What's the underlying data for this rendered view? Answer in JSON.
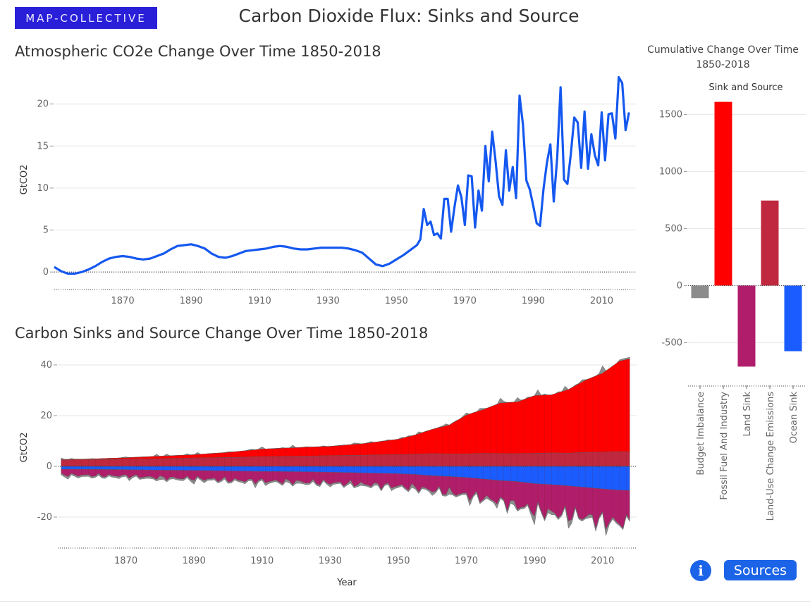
{
  "header": {
    "logo_text": "MAP-COLLECTIVE",
    "title": "Carbon Dioxide Flux: Sinks and Source"
  },
  "buttons": {
    "info_label": "i",
    "sources_label": "Sources"
  },
  "colors": {
    "line": "#1558f0",
    "budget_imbalance": "#8c8c8c",
    "fossil_fuel": "#ff0000",
    "land_sink": "#b01e6b",
    "land_use": "#c0283f",
    "ocean_sink": "#1a5cff"
  },
  "chart_data": [
    {
      "type": "line",
      "title": "Atmospheric CO2e Change Over Time 1850-2018",
      "xlabel": "",
      "ylabel": "GtCO2",
      "xlim": [
        1850,
        2020
      ],
      "ylim": [
        -2,
        24
      ],
      "xticks": [
        1870,
        1890,
        1910,
        1930,
        1950,
        1970,
        1990,
        2010
      ],
      "yticks": [
        0,
        5,
        10,
        15,
        20
      ],
      "grid": true,
      "x": [
        1850,
        1852,
        1854,
        1856,
        1858,
        1860,
        1862,
        1864,
        1866,
        1868,
        1870,
        1872,
        1874,
        1876,
        1878,
        1880,
        1882,
        1884,
        1886,
        1888,
        1890,
        1892,
        1894,
        1896,
        1898,
        1900,
        1902,
        1904,
        1906,
        1908,
        1910,
        1912,
        1914,
        1916,
        1918,
        1920,
        1922,
        1924,
        1926,
        1928,
        1930,
        1932,
        1934,
        1936,
        1938,
        1940,
        1942,
        1944,
        1946,
        1948,
        1950,
        1952,
        1954,
        1956,
        1957,
        1958,
        1959,
        1960,
        1961,
        1962,
        1963,
        1964,
        1965,
        1966,
        1967,
        1968,
        1969,
        1970,
        1971,
        1972,
        1973,
        1974,
        1975,
        1976,
        1977,
        1978,
        1979,
        1980,
        1981,
        1982,
        1983,
        1984,
        1985,
        1986,
        1987,
        1988,
        1989,
        1990,
        1991,
        1992,
        1993,
        1994,
        1995,
        1996,
        1997,
        1998,
        1999,
        2000,
        2001,
        2002,
        2003,
        2004,
        2005,
        2006,
        2007,
        2008,
        2009,
        2010,
        2011,
        2012,
        2013,
        2014,
        2015,
        2016,
        2017,
        2018
      ],
      "values": [
        0.6,
        0.1,
        -0.2,
        -0.2,
        0,
        0.3,
        0.7,
        1.2,
        1.6,
        1.8,
        1.9,
        1.8,
        1.6,
        1.5,
        1.6,
        1.9,
        2.2,
        2.7,
        3.1,
        3.2,
        3.3,
        3.1,
        2.8,
        2.2,
        1.8,
        1.7,
        1.9,
        2.2,
        2.5,
        2.6,
        2.7,
        2.8,
        3.0,
        3.1,
        3.0,
        2.8,
        2.7,
        2.7,
        2.8,
        2.9,
        2.9,
        2.9,
        2.9,
        2.8,
        2.6,
        2.3,
        1.6,
        0.9,
        0.7,
        1.0,
        1.5,
        2.0,
        2.6,
        3.2,
        3.9,
        7.5,
        5.6,
        6.0,
        4.4,
        4.6,
        4.0,
        8.7,
        8.7,
        4.8,
        7.8,
        10.3,
        8.9,
        5.6,
        11.5,
        11.4,
        5.3,
        9.7,
        7.3,
        15.0,
        10.8,
        16.7,
        13.2,
        9.0,
        8.0,
        14.5,
        9.7,
        12.5,
        8.8,
        21.0,
        17.5,
        10.9,
        9.8,
        7.9,
        5.8,
        5.5,
        9.9,
        13.0,
        15.2,
        8.4,
        13.6,
        22.0,
        11.0,
        10.5,
        14.1,
        18.4,
        17.8,
        12.4,
        19.1,
        12.3,
        16.4,
        13.9,
        12.7,
        19.0,
        13.3,
        18.8,
        18.9,
        15.9,
        23.2,
        22.5,
        16.9,
        19.0
      ]
    },
    {
      "type": "area",
      "title": "Carbon Sinks and Source Change Over Time 1850-2018",
      "xlabel": "Year",
      "ylabel": "GtCO2",
      "xlim": [
        1850,
        2020
      ],
      "ylim": [
        -30,
        45
      ],
      "xticks": [
        1870,
        1890,
        1910,
        1930,
        1950,
        1970,
        1990,
        2010
      ],
      "yticks": [
        -20,
        0,
        20,
        40
      ],
      "grid": true,
      "x": [
        1850,
        1860,
        1870,
        1880,
        1890,
        1900,
        1910,
        1920,
        1930,
        1940,
        1950,
        1955,
        1960,
        1965,
        1970,
        1975,
        1980,
        1985,
        1990,
        1995,
        2000,
        2005,
        2010,
        2015,
        2018
      ],
      "series": [
        {
          "name": "Land-Use Change Emissions",
          "values": [
            2.5,
            2.6,
            2.8,
            3.0,
            3.3,
            3.5,
            3.8,
            4.0,
            4.2,
            4.4,
            4.6,
            4.8,
            5.0,
            4.9,
            4.9,
            5.1,
            5.0,
            5.0,
            5.1,
            5.3,
            5.2,
            5.5,
            5.6,
            5.8,
            5.7
          ]
        },
        {
          "name": "Fossil Fuel And Industry",
          "values": [
            0.2,
            0.3,
            0.6,
            1.0,
            1.3,
            2.0,
            3.0,
            3.4,
            3.7,
            4.6,
            6.1,
            7.6,
            9.6,
            11.4,
            15.3,
            17.3,
            20.0,
            20.4,
            22.8,
            22.9,
            25.1,
            28.5,
            31.1,
            35.7,
            36.7
          ]
        },
        {
          "name": "Ocean Sink",
          "values": [
            -1.1,
            -1.2,
            -1.3,
            -1.5,
            -1.6,
            -1.8,
            -2.0,
            -2.1,
            -2.3,
            -2.6,
            -2.9,
            -3.2,
            -3.7,
            -4.0,
            -4.4,
            -5.0,
            -5.6,
            -6.0,
            -6.8,
            -7.2,
            -7.7,
            -8.3,
            -8.9,
            -9.4,
            -9.5
          ]
        },
        {
          "name": "Land Sink",
          "values": [
            -2.2,
            -2.4,
            -2.5,
            -3.0,
            -3.2,
            -3.6,
            -3.8,
            -4.0,
            -4.2,
            -4.5,
            -5.0,
            -5.2,
            -5.7,
            -6.2,
            -7.0,
            -7.5,
            -8.2,
            -9.5,
            -10.5,
            -11.3,
            -11.3,
            -11.6,
            -12.5,
            -12.8,
            -12.6
          ]
        },
        {
          "name": "Budget Imbalance",
          "values": [
            -0.6,
            0.2,
            -0.4,
            0.8,
            -0.7,
            0.3,
            -0.8,
            0.9,
            -0.5,
            1.0,
            -0.9,
            1.1,
            -1.3,
            1.5,
            -1.6,
            1.4,
            -2.0,
            2.3,
            -2.5,
            2.4,
            -2.2,
            2.7,
            -2.4,
            2.1,
            -1.9
          ]
        }
      ]
    },
    {
      "type": "bar",
      "title": "Cumulative Change Over Time 1850-2018",
      "subtitle": "Sink and Source",
      "xlabel": "",
      "ylabel": "",
      "ylim": [
        -800,
        1700
      ],
      "yticks": [
        -500,
        0,
        500,
        1000,
        1500
      ],
      "grid": true,
      "categories": [
        "Budget Imbalance",
        "Fossil Fuel And Industry",
        "Land Sink",
        "Land-Use Change Emissions",
        "Ocean Sink"
      ],
      "values": [
        -110,
        1610,
        -710,
        745,
        -575
      ]
    }
  ]
}
